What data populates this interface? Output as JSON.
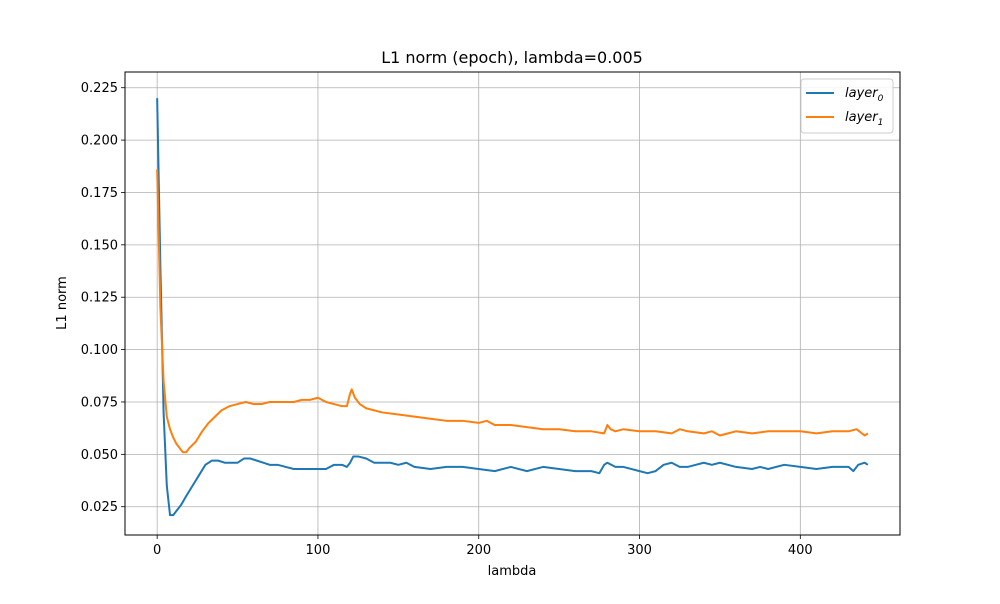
{
  "chart_data": {
    "type": "line",
    "title": "L1 norm (epoch), lambda=0.005",
    "xlabel": "lambda",
    "ylabel": "L1 norm",
    "xlim": [
      -20,
      462
    ],
    "ylim": [
      0.0115,
      0.2325
    ],
    "xticks": [
      0,
      100,
      200,
      300,
      400
    ],
    "yticks": [
      0.025,
      0.05,
      0.075,
      0.1,
      0.125,
      0.15,
      0.175,
      0.2,
      0.225
    ],
    "ytick_labels": [
      "0.025",
      "0.050",
      "0.075",
      "0.100",
      "0.125",
      "0.150",
      "0.175",
      "0.200",
      "0.225"
    ],
    "grid": true,
    "legend_position": "top-right",
    "series": [
      {
        "name": "layer_0",
        "color": "#1f77b4",
        "x": [
          0,
          2,
          4,
          6,
          8,
          10,
          12,
          15,
          18,
          22,
          26,
          30,
          34,
          38,
          42,
          46,
          50,
          54,
          58,
          62,
          66,
          70,
          75,
          80,
          85,
          90,
          95,
          100,
          105,
          110,
          115,
          118,
          120,
          122,
          125,
          130,
          135,
          140,
          145,
          150,
          155,
          160,
          170,
          180,
          190,
          200,
          210,
          220,
          230,
          240,
          250,
          260,
          270,
          275,
          278,
          280,
          285,
          290,
          300,
          305,
          310,
          315,
          320,
          325,
          330,
          335,
          340,
          345,
          350,
          360,
          370,
          375,
          380,
          390,
          400,
          410,
          420,
          430,
          433,
          436,
          440,
          442
        ],
        "y": [
          0.22,
          0.14,
          0.07,
          0.035,
          0.021,
          0.021,
          0.023,
          0.026,
          0.03,
          0.035,
          0.04,
          0.045,
          0.047,
          0.047,
          0.046,
          0.046,
          0.046,
          0.048,
          0.048,
          0.047,
          0.046,
          0.045,
          0.045,
          0.044,
          0.043,
          0.043,
          0.043,
          0.043,
          0.043,
          0.045,
          0.045,
          0.044,
          0.046,
          0.049,
          0.049,
          0.048,
          0.046,
          0.046,
          0.046,
          0.045,
          0.046,
          0.044,
          0.043,
          0.044,
          0.044,
          0.043,
          0.042,
          0.044,
          0.042,
          0.044,
          0.043,
          0.042,
          0.042,
          0.041,
          0.045,
          0.046,
          0.044,
          0.044,
          0.042,
          0.041,
          0.042,
          0.045,
          0.046,
          0.044,
          0.044,
          0.045,
          0.046,
          0.045,
          0.046,
          0.044,
          0.043,
          0.044,
          0.043,
          0.045,
          0.044,
          0.043,
          0.044,
          0.044,
          0.042,
          0.045,
          0.046,
          0.045
        ]
      },
      {
        "name": "layer_1",
        "color": "#ff7f0e",
        "x": [
          0,
          2,
          4,
          6,
          8,
          10,
          12,
          14,
          16,
          18,
          20,
          24,
          28,
          32,
          36,
          40,
          45,
          50,
          55,
          60,
          65,
          70,
          75,
          80,
          85,
          90,
          95,
          100,
          105,
          110,
          115,
          118,
          120,
          121,
          123,
          126,
          130,
          135,
          140,
          150,
          160,
          170,
          180,
          190,
          200,
          205,
          210,
          220,
          230,
          240,
          250,
          260,
          270,
          278,
          280,
          282,
          285,
          290,
          300,
          310,
          320,
          325,
          330,
          340,
          345,
          350,
          355,
          360,
          370,
          380,
          390,
          400,
          410,
          420,
          430,
          435,
          440,
          442
        ],
        "y": [
          0.186,
          0.12,
          0.085,
          0.068,
          0.062,
          0.058,
          0.055,
          0.053,
          0.051,
          0.051,
          0.053,
          0.056,
          0.061,
          0.065,
          0.068,
          0.071,
          0.073,
          0.074,
          0.075,
          0.074,
          0.074,
          0.075,
          0.075,
          0.075,
          0.075,
          0.076,
          0.076,
          0.077,
          0.075,
          0.074,
          0.073,
          0.073,
          0.079,
          0.081,
          0.077,
          0.074,
          0.072,
          0.071,
          0.07,
          0.069,
          0.068,
          0.067,
          0.066,
          0.066,
          0.065,
          0.066,
          0.064,
          0.064,
          0.063,
          0.062,
          0.062,
          0.061,
          0.061,
          0.06,
          0.064,
          0.062,
          0.061,
          0.062,
          0.061,
          0.061,
          0.06,
          0.062,
          0.061,
          0.06,
          0.061,
          0.059,
          0.06,
          0.061,
          0.06,
          0.061,
          0.061,
          0.061,
          0.06,
          0.061,
          0.061,
          0.062,
          0.059,
          0.06
        ]
      }
    ]
  },
  "legend": {
    "entries": [
      {
        "base": "layer",
        "sub": "0"
      },
      {
        "base": "layer",
        "sub": "1"
      }
    ]
  }
}
